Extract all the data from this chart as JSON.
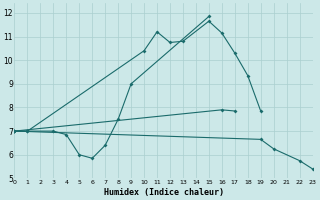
{
  "xlabel": "Humidex (Indice chaleur)",
  "xlim": [
    0,
    23
  ],
  "ylim": [
    5,
    12.4
  ],
  "background_color": "#cce8e8",
  "grid_color": "#aacfcf",
  "line_color": "#1a6b6b",
  "line1_x": [
    0,
    1,
    10,
    11,
    12,
    13,
    15,
    16,
    17,
    18,
    19
  ],
  "line1_y": [
    7.0,
    7.0,
    10.4,
    11.2,
    10.75,
    10.8,
    11.65,
    11.15,
    10.3,
    9.35,
    7.85
  ],
  "line2_x": [
    0,
    1,
    3,
    4,
    5,
    6,
    7,
    8,
    9,
    15
  ],
  "line2_y": [
    7.0,
    7.0,
    7.0,
    6.85,
    6.0,
    5.85,
    6.4,
    7.5,
    9.0,
    11.85
  ],
  "line3_x": [
    0,
    19,
    20,
    22,
    23
  ],
  "line3_y": [
    7.0,
    6.65,
    6.25,
    5.75,
    5.4
  ],
  "line4_x": [
    0,
    16,
    17
  ],
  "line4_y": [
    7.0,
    7.9,
    7.85
  ],
  "yticks": [
    5,
    6,
    7,
    8,
    9,
    10,
    11,
    12
  ],
  "xticks": [
    0,
    1,
    2,
    3,
    4,
    5,
    6,
    7,
    8,
    9,
    10,
    11,
    12,
    13,
    14,
    15,
    16,
    17,
    18,
    19,
    20,
    21,
    22,
    23
  ]
}
